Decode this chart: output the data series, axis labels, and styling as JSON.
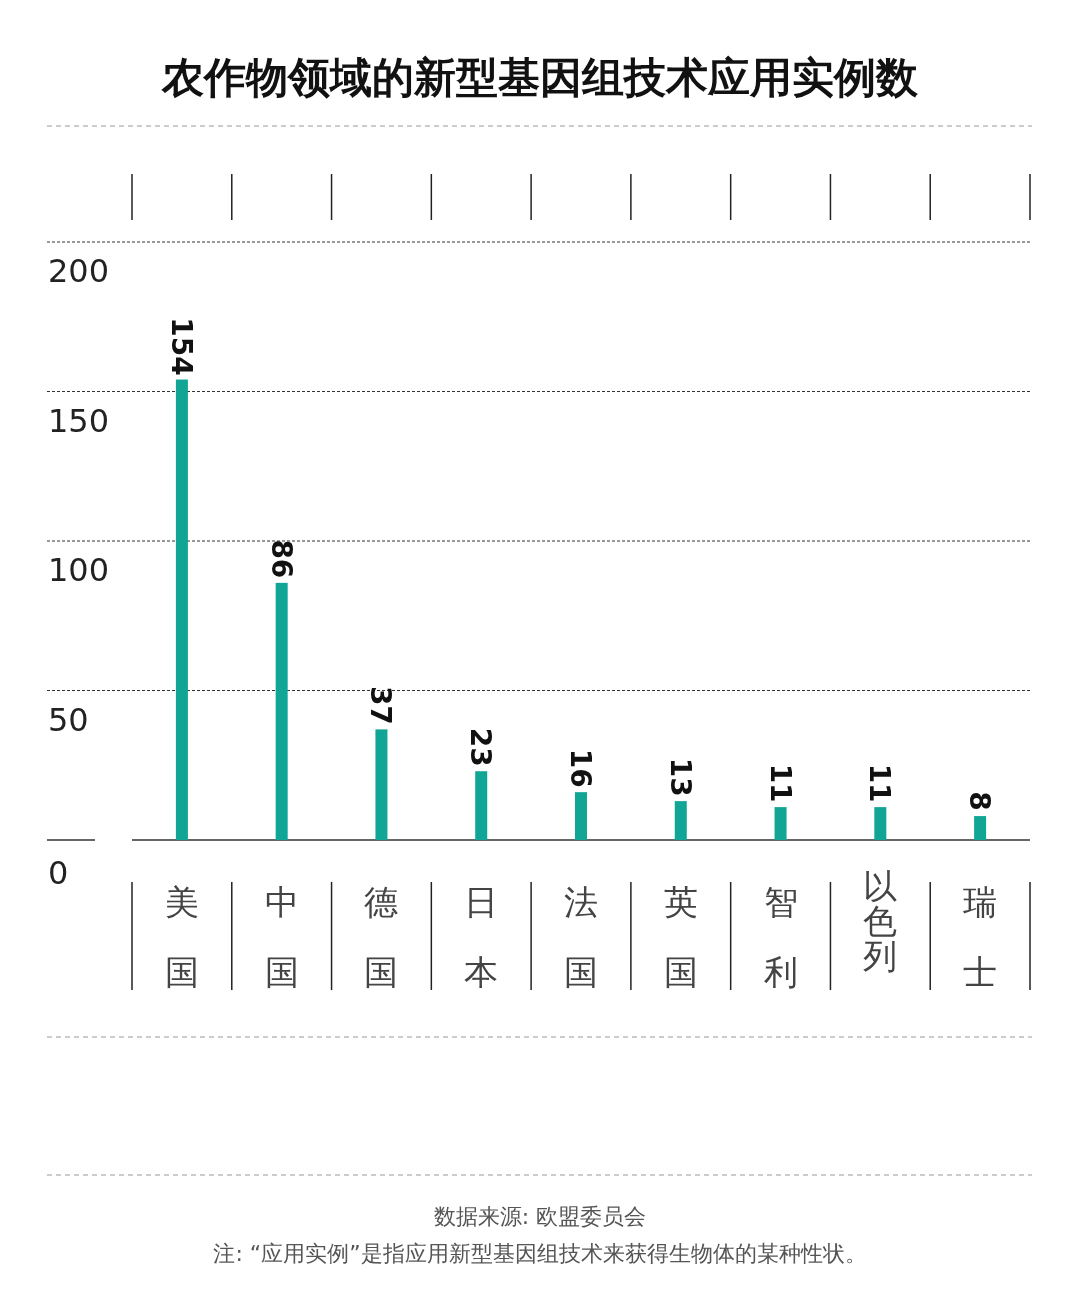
{
  "chart_data": {
    "type": "bar",
    "title": "农作物领域的新型基因组技术应用实例数",
    "categories": [
      "美国",
      "中国",
      "德国",
      "日本",
      "法国",
      "英国",
      "智利",
      "以色列",
      "瑞士"
    ],
    "values": [
      154,
      86,
      37,
      23,
      16,
      13,
      11,
      11,
      8
    ],
    "color": "#10a595",
    "ylim": [
      0,
      200
    ],
    "yticks": [
      0,
      50,
      100,
      150,
      200
    ],
    "grid": "y",
    "data_labels": true,
    "annotations": [
      "数据来源: 欧盟委员会",
      "注: “应用实例”是指应用新型基因组技术来获得生物体的某种性状。"
    ]
  }
}
